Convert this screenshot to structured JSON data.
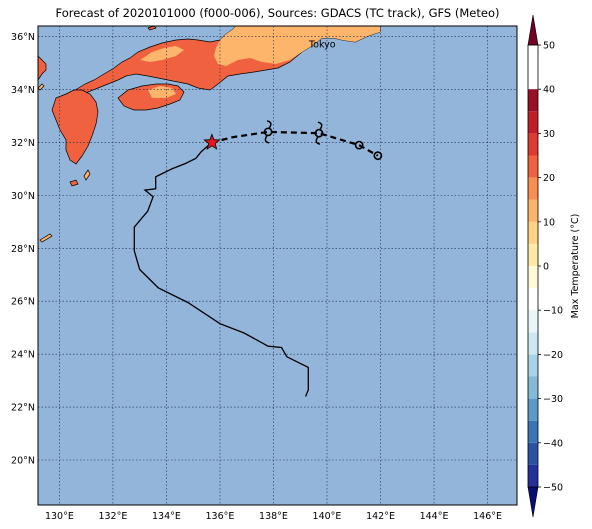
{
  "title": "Forecast of 2020101000 (f000-006), Sources: GDACS (TC track), GFS (Meteo)",
  "map": {
    "lon_range": [
      129.2,
      147.1
    ],
    "lat_range": [
      18.3,
      36.4
    ],
    "lon_ticks": [
      130,
      132,
      134,
      136,
      138,
      140,
      142,
      144,
      146
    ],
    "lon_tick_labels": [
      "130°E",
      "132°E",
      "134°E",
      "136°E",
      "138°E",
      "140°E",
      "142°E",
      "144°E",
      "146°E"
    ],
    "lat_ticks": [
      20,
      22,
      24,
      26,
      28,
      30,
      32,
      34,
      36
    ],
    "lat_tick_labels": [
      "20°N",
      "22°N",
      "24°N",
      "26°N",
      "28°N",
      "30°N",
      "32°N",
      "34°N",
      "36°N"
    ],
    "gridlines": true,
    "ocean_color": "#92b5d9",
    "city_label": "Tokyo",
    "city": [
      139.7,
      35.7
    ]
  },
  "colorbar": {
    "label": "Max Temperature (°C)",
    "levels": [
      -55,
      -50,
      -45,
      -40,
      -35,
      -30,
      -25,
      -20,
      -15,
      -10,
      -5,
      0,
      5,
      10,
      15,
      20,
      25,
      30,
      35,
      40,
      45,
      50,
      55
    ],
    "colors": [
      "#0b0f74",
      "#25309a",
      "#2c52a6",
      "#3a74b5",
      "#5a9ac8",
      "#83bad8",
      "#a8d3e6",
      "#cde8f1",
      "#e9f5f8",
      "#ffffff",
      "#fff9d8",
      "#ffe9a5",
      "#ffd286",
      "#fdb46b",
      "#f98d52",
      "#f0623f",
      "#dd3a31",
      "#c11d2a",
      "#9b0e28",
      "#700324"
    ],
    "tick_values": [
      -50,
      -40,
      -30,
      -20,
      -10,
      0,
      10,
      20,
      30,
      40,
      50
    ],
    "tick_labels": [
      "−50",
      "−40",
      "−30",
      "−20",
      "−10",
      "0",
      "10",
      "20",
      "30",
      "40",
      "50"
    ]
  },
  "past_track": [
    [
      139.2,
      22.4
    ],
    [
      139.3,
      22.65
    ],
    [
      139.3,
      23.5
    ],
    [
      138.5,
      23.9
    ],
    [
      138.3,
      24.25
    ],
    [
      137.8,
      24.3
    ],
    [
      136.9,
      24.8
    ],
    [
      136.0,
      25.15
    ],
    [
      134.8,
      25.95
    ],
    [
      133.7,
      26.5
    ],
    [
      133.0,
      27.2
    ],
    [
      132.8,
      27.9
    ],
    [
      132.8,
      28.8
    ],
    [
      133.3,
      29.4
    ],
    [
      133.5,
      29.95
    ],
    [
      133.2,
      30.2
    ],
    [
      133.6,
      30.25
    ],
    [
      133.6,
      30.7
    ],
    [
      134.2,
      31.0
    ],
    [
      134.7,
      31.2
    ],
    [
      135.1,
      31.4
    ],
    [
      135.3,
      31.65
    ],
    [
      135.7,
      32.0
    ]
  ],
  "current_position": [
    135.7,
    32.0
  ],
  "forecast_track": [
    [
      135.7,
      32.0
    ],
    [
      136.5,
      32.2
    ],
    [
      137.8,
      32.4
    ],
    [
      139.7,
      32.35
    ],
    [
      141.2,
      31.9
    ],
    [
      141.9,
      31.5
    ]
  ],
  "forecast_markers": [
    {
      "lon": 137.8,
      "lat": 32.4,
      "symbol": "typhoon"
    },
    {
      "lon": 139.7,
      "lat": 32.35,
      "symbol": "typhoon"
    },
    {
      "lon": 141.2,
      "lat": 31.9,
      "symbol": "low"
    },
    {
      "lon": 141.9,
      "lat": 31.5,
      "symbol": "low"
    }
  ]
}
